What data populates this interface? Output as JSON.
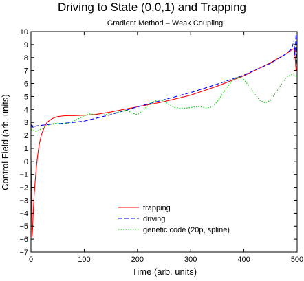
{
  "chart_data": {
    "type": "line",
    "title": "Driving to State (0,0,1) and Trapping",
    "subtitle": "Gradient Method – Weak Coupling",
    "xlabel": "Time (arb. units)",
    "ylabel": "Control Field (arb. units)",
    "xlim": [
      0,
      500
    ],
    "ylim": [
      -7,
      10
    ],
    "xticks": [
      "0",
      "100",
      "200",
      "300",
      "400",
      "500"
    ],
    "yticks": [
      "−7",
      "−6",
      "−5",
      "−4",
      "−3",
      "−2",
      "−1",
      "0",
      "1",
      "2",
      "3",
      "4",
      "5",
      "6",
      "7",
      "8",
      "9",
      "10"
    ],
    "grid": false,
    "legend_position": "bottom-center",
    "series": [
      {
        "name": "trapping",
        "color": "#ff0000",
        "style": "solid",
        "x": [
          0,
          1,
          2,
          3,
          4,
          6,
          8,
          10,
          13,
          16,
          20,
          25,
          30,
          40,
          50,
          60,
          70,
          80,
          100,
          120,
          150,
          180,
          200,
          250,
          300,
          350,
          400,
          450,
          480,
          490,
          495,
          498,
          500
        ],
        "y": [
          0.3,
          -3.0,
          -5.8,
          -5.3,
          -4.2,
          -2.6,
          -1.5,
          -0.5,
          0.6,
          1.4,
          2.1,
          2.6,
          3.0,
          3.3,
          3.45,
          3.5,
          3.52,
          3.52,
          3.55,
          3.6,
          3.8,
          4.05,
          4.2,
          4.6,
          5.1,
          5.8,
          6.6,
          7.6,
          8.3,
          8.6,
          8.7,
          7.0,
          7.2
        ]
      },
      {
        "name": "driving",
        "color": "#0000ff",
        "style": "dashed",
        "x": [
          0,
          1,
          2,
          3,
          4,
          5,
          6,
          8,
          10,
          20,
          30,
          50,
          80,
          100,
          150,
          200,
          250,
          300,
          350,
          400,
          450,
          480,
          490,
          494,
          496,
          498,
          500
        ],
        "y": [
          2.55,
          2.8,
          2.6,
          2.75,
          2.6,
          2.7,
          2.68,
          2.7,
          2.72,
          2.78,
          2.82,
          2.9,
          3.0,
          3.1,
          3.6,
          4.2,
          4.75,
          5.3,
          5.95,
          6.65,
          7.55,
          8.3,
          8.7,
          9.3,
          8.2,
          9.8,
          7.0
        ]
      },
      {
        "name": "genetic code (20p, spline)",
        "color": "#00cc00",
        "style": "dotted",
        "x": [
          0,
          10,
          20,
          30,
          40,
          50,
          60,
          70,
          80,
          90,
          100,
          110,
          120,
          130,
          140,
          150,
          160,
          170,
          180,
          190,
          200,
          210,
          220,
          230,
          240,
          250,
          260,
          270,
          280,
          290,
          300,
          310,
          320,
          330,
          340,
          350,
          360,
          370,
          380,
          390,
          395,
          400,
          410,
          420,
          430,
          440,
          450,
          460,
          470,
          480,
          490,
          495,
          500
        ],
        "y": [
          2.45,
          2.3,
          2.5,
          2.75,
          2.9,
          2.95,
          2.9,
          2.95,
          3.1,
          3.3,
          3.5,
          3.65,
          3.6,
          3.55,
          3.6,
          3.7,
          3.75,
          3.85,
          3.95,
          3.7,
          3.6,
          3.9,
          4.3,
          4.6,
          4.75,
          4.65,
          4.35,
          4.15,
          4.1,
          4.1,
          4.15,
          4.2,
          4.2,
          4.1,
          4.2,
          4.6,
          5.2,
          5.8,
          6.3,
          6.5,
          6.5,
          6.3,
          5.8,
          5.2,
          4.7,
          4.5,
          4.7,
          5.3,
          5.9,
          6.5,
          6.7,
          6.65,
          6.5
        ]
      }
    ]
  }
}
